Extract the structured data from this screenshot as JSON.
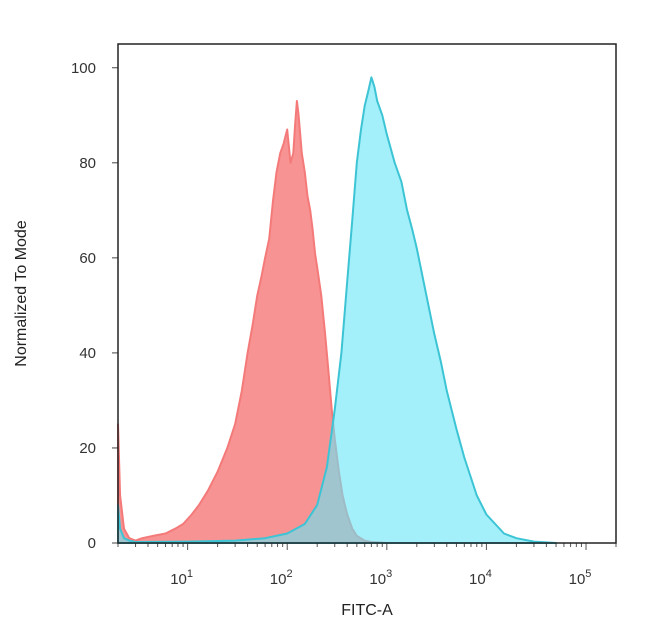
{
  "chart_data": {
    "type": "area",
    "xlabel": "FITC-A",
    "ylabel": "Normalized To Mode",
    "xscale": "log",
    "xlim": [
      2,
      200000
    ],
    "ylim": [
      0,
      105
    ],
    "x_ticks": [
      {
        "value": 10,
        "base": "10",
        "exp": "1"
      },
      {
        "value": 100,
        "base": "10",
        "exp": "2"
      },
      {
        "value": 1000,
        "base": "10",
        "exp": "3"
      },
      {
        "value": 10000,
        "base": "10",
        "exp": "4"
      },
      {
        "value": 100000,
        "base": "10",
        "exp": "5"
      }
    ],
    "y_ticks": [
      "0",
      "20",
      "40",
      "60",
      "80",
      "100"
    ],
    "grid": false,
    "series": [
      {
        "color": "#f47a7a",
        "fill": "#f78080",
        "x": [
          2,
          2.1,
          2.3,
          2.6,
          3,
          3.5,
          4.5,
          6,
          7.5,
          9,
          11,
          13,
          16,
          20,
          25,
          30,
          35,
          40,
          45,
          50,
          55,
          60,
          66,
          72,
          78,
          85,
          92,
          100,
          108,
          115,
          120,
          125,
          130,
          135,
          140,
          150,
          160,
          170,
          180,
          190,
          200,
          220,
          240,
          260,
          280,
          300,
          330,
          360,
          400,
          450,
          500,
          600,
          700,
          1000
        ],
        "y": [
          25,
          10,
          3,
          1,
          0.5,
          1,
          1.5,
          2,
          3,
          4,
          6,
          8,
          11,
          15,
          20,
          25,
          32,
          40,
          46,
          52,
          56,
          60,
          64,
          72,
          78,
          82,
          84,
          87,
          80,
          82,
          88,
          93,
          90,
          86,
          82,
          78,
          73,
          70,
          66,
          61,
          58,
          52,
          44,
          36,
          28,
          22,
          15,
          10,
          6,
          3,
          1.5,
          0.5,
          0.2,
          0
        ]
      },
      {
        "color": "#3cc4d4",
        "fill": "#66e6f7",
        "x": [
          2,
          2.1,
          2.3,
          2.6,
          3,
          10,
          30,
          60,
          100,
          150,
          200,
          250,
          300,
          350,
          400,
          450,
          500,
          550,
          600,
          650,
          700,
          750,
          800,
          900,
          1000,
          1200,
          1400,
          1600,
          1800,
          2000,
          2500,
          3000,
          3500,
          4000,
          5000,
          6000,
          8000,
          10000,
          15000,
          20000,
          30000,
          50000
        ],
        "y": [
          8,
          3,
          1,
          0.5,
          0.2,
          0.3,
          0.5,
          1,
          2,
          4,
          8,
          16,
          28,
          40,
          55,
          68,
          80,
          87,
          92,
          95,
          98,
          96,
          93,
          90,
          86,
          80,
          76,
          70,
          66,
          62,
          52,
          44,
          38,
          32,
          24,
          18,
          10,
          6,
          2,
          1,
          0.3,
          0
        ]
      }
    ]
  }
}
